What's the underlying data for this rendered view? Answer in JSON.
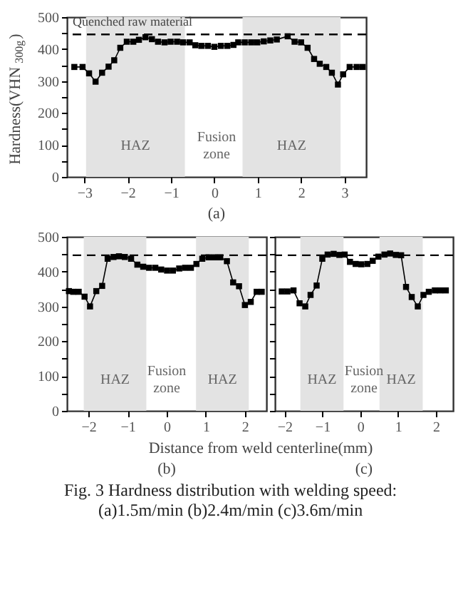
{
  "chart_data": [
    {
      "type": "line",
      "title": "(a)",
      "ylabel": "Hardness(VHN$_{300g}$)",
      "marker": "square",
      "line_style": "solid",
      "grid": false,
      "xlim": [
        -3.4,
        3.5
      ],
      "xticks": [
        -3,
        -2,
        -1,
        0,
        1,
        2,
        3
      ],
      "ylim": [
        0,
        500
      ],
      "yticks": [
        0,
        {
          "value": 50,
          "label": null
        },
        100,
        {
          "value": 150,
          "label": null
        },
        200,
        {
          "value": 250,
          "label": null
        },
        300,
        {
          "value": 350,
          "label": null
        },
        400,
        {
          "value": 450,
          "label": null
        },
        500
      ],
      "x": [
        -3.23,
        -3.04,
        -2.89,
        -2.74,
        -2.59,
        -2.44,
        -2.31,
        -2.17,
        -2.02,
        -1.87,
        -1.74,
        -1.59,
        -1.44,
        -1.3,
        -1.15,
        -1.01,
        -0.86,
        -0.72,
        -0.57,
        -0.44,
        -0.3,
        -0.15,
        0,
        0.15,
        0.3,
        0.44,
        0.55,
        0.7,
        0.85,
        0.99,
        1.14,
        1.29,
        1.44,
        1.69,
        1.85,
        2.0,
        2.15,
        2.3,
        2.43,
        2.58,
        2.71,
        2.85,
        2.97,
        3.12,
        3.28,
        3.42
      ],
      "series": [
        {
          "color": "#000000",
          "values": [
            344,
            344,
            324,
            298,
            326,
            345,
            365,
            404,
            423,
            423,
            429,
            437,
            431,
            423,
            421,
            423,
            423,
            421,
            421,
            412,
            410,
            410,
            407,
            410,
            410,
            413,
            421,
            421,
            421,
            421,
            424,
            427,
            430,
            440,
            423,
            421,
            404,
            369,
            354,
            344,
            326,
            289,
            321,
            344,
            344,
            344
          ]
        }
      ],
      "ref_lines": [
        {
          "axis": "y",
          "value": 446,
          "label": "Quenched raw material",
          "color": "#000000",
          "line_style": "dashed"
        }
      ],
      "bands": [
        {
          "axis": "x",
          "from": -2.96,
          "to": -0.68,
          "label": "HAZ",
          "color": "#e3e3e3"
        },
        {
          "axis": "x",
          "from": 0.65,
          "to": 2.91,
          "label": "HAZ",
          "color": "#e3e3e3"
        }
      ],
      "annotations": [
        "Fusion zone"
      ]
    },
    {
      "type": "line",
      "title": "(b)",
      "xlabel": "Distance from weld centerline(mm)",
      "marker": "square",
      "line_style": "solid",
      "grid": false,
      "xlim": [
        -2.55,
        2.55
      ],
      "xticks": [
        -2,
        -1,
        0,
        1,
        2
      ],
      "ylim": [
        0,
        500
      ],
      "yticks": [
        0,
        {
          "value": 50,
          "label": null
        },
        100,
        {
          "value": 150,
          "label": null
        },
        200,
        {
          "value": 250,
          "label": null
        },
        300,
        {
          "value": 350,
          "label": null
        },
        400,
        {
          "value": 450,
          "label": null
        },
        500
      ],
      "x": [
        -2.5,
        -2.39,
        -2.25,
        -2.1,
        -1.96,
        -1.8,
        -1.65,
        -1.51,
        -1.36,
        -1.22,
        -1.07,
        -0.91,
        -0.75,
        -0.6,
        -0.45,
        -0.29,
        -0.14,
        0.01,
        0.16,
        0.32,
        0.47,
        0.62,
        0.76,
        0.91,
        1.07,
        1.22,
        1.37,
        1.54,
        1.7,
        1.85,
        2.0,
        2.15,
        2.3,
        2.43
      ],
      "series": [
        {
          "color": "#000000",
          "values": [
            344,
            342,
            342,
            328,
            300,
            344,
            359,
            437,
            442,
            444,
            442,
            437,
            420,
            414,
            411,
            411,
            406,
            403,
            403,
            409,
            411,
            411,
            422,
            437,
            441,
            441,
            441,
            430,
            369,
            358,
            304,
            313,
            342,
            342
          ]
        }
      ],
      "ref_lines": [
        {
          "axis": "y",
          "value": 447,
          "color": "#000000",
          "line_style": "dashed"
        }
      ],
      "bands": [
        {
          "axis": "x",
          "from": -2.12,
          "to": -0.52,
          "label": "HAZ",
          "color": "#e3e3e3"
        },
        {
          "axis": "x",
          "from": 0.75,
          "to": 2.1,
          "label": "HAZ",
          "color": "#e3e3e3"
        }
      ],
      "annotations": [
        "Fusion zone"
      ]
    },
    {
      "type": "line",
      "title": "(c)",
      "marker": "square",
      "line_style": "solid",
      "grid": false,
      "tick_labels": "x",
      "xlim": [
        -2.25,
        2.45
      ],
      "xticks": [
        -2,
        -1,
        0,
        1,
        2
      ],
      "ylim": [
        0,
        500
      ],
      "yticks": [
        0,
        {
          "value": 50,
          "label": null
        },
        100,
        {
          "value": 150,
          "label": null
        },
        200,
        {
          "value": 250,
          "label": null
        },
        300,
        {
          "value": 350,
          "label": null
        },
        400,
        {
          "value": 450,
          "label": null
        },
        500
      ],
      "x": [
        -2.07,
        -1.92,
        -1.76,
        -1.6,
        -1.45,
        -1.31,
        -1.15,
        -1.0,
        -0.86,
        -0.7,
        -0.55,
        -0.41,
        -0.27,
        -0.12,
        0.03,
        0.19,
        0.33,
        0.48,
        0.64,
        0.79,
        0.94,
        1.08,
        1.21,
        1.36,
        1.52,
        1.67,
        1.81,
        1.97,
        2.11,
        2.26
      ],
      "series": [
        {
          "color": "#000000",
          "values": [
            343,
            343,
            346,
            309,
            300,
            333,
            360,
            437,
            449,
            451,
            448,
            449,
            428,
            422,
            421,
            422,
            431,
            443,
            449,
            452,
            448,
            447,
            356,
            327,
            300,
            333,
            342,
            346,
            346,
            346
          ]
        }
      ],
      "ref_lines": [
        {
          "axis": "y",
          "value": 447,
          "color": "#000000",
          "line_style": "dashed"
        }
      ],
      "bands": [
        {
          "axis": "x",
          "from": -1.58,
          "to": -0.44,
          "label": "HAZ",
          "color": "#e3e3e3"
        },
        {
          "axis": "x",
          "from": 0.51,
          "to": 1.65,
          "label": "HAZ",
          "color": "#e3e3e3"
        }
      ],
      "annotations": [
        "Fusion zone",
        "Fig. 3 Hardness distribution with welding speed:",
        "(a)1.5m/min  (b)2.4m/min  (c)3.6m/min"
      ]
    }
  ]
}
